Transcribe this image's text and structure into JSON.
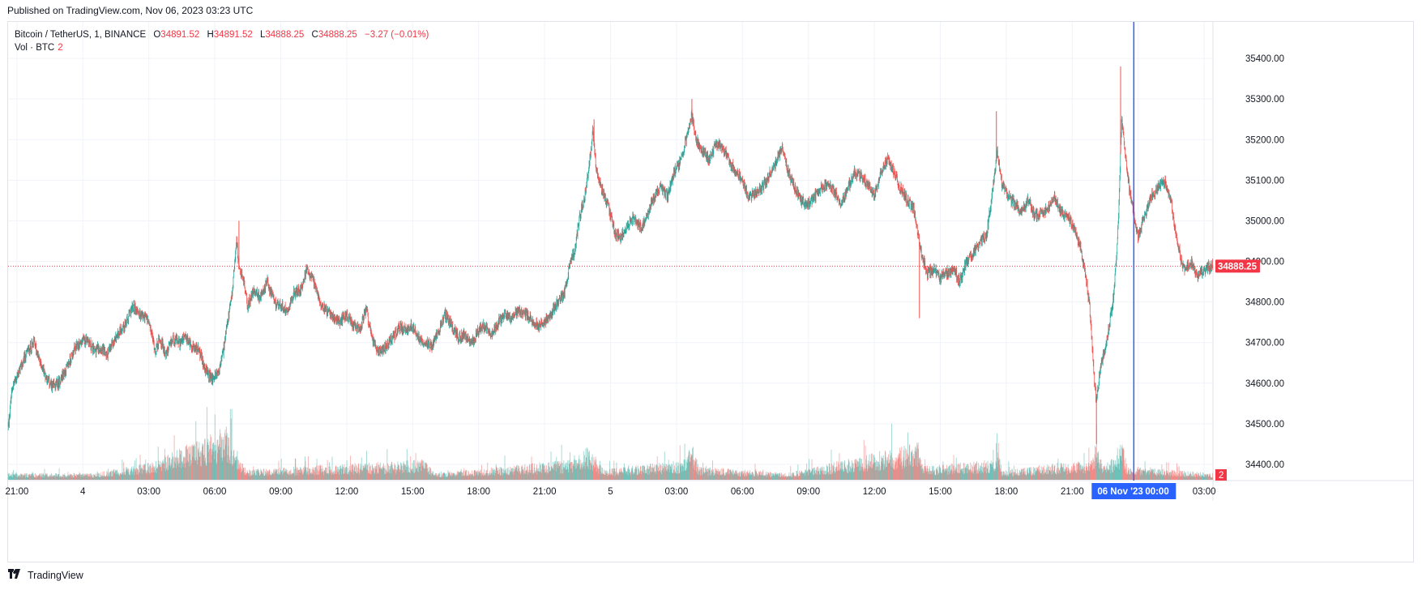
{
  "header": {
    "published": "Published on TradingView.com, Nov 06, 2023 03:23 UTC"
  },
  "legend": {
    "symbol": "Bitcoin / TetherUS, 1, BINANCE",
    "open_label": "O",
    "open": "34891.52",
    "high_label": "H",
    "high": "34891.52",
    "low_label": "L",
    "low": "34888.25",
    "close_label": "C",
    "close": "34888.25",
    "change": "−3.27 (−0.01%)",
    "volume_label": "Vol · BTC",
    "volume_value": "2"
  },
  "footer": {
    "brand_icon": "tradingview-logo-icon",
    "brand": "TradingView"
  },
  "colors": {
    "up": "#26a69a",
    "down": "#ef5350",
    "crosshair": "#2962ff",
    "price_line": "#f23645",
    "grid": "#f0f3fa"
  },
  "chart_data": {
    "type": "candlestick",
    "symbol": "Bitcoin / TetherUS",
    "interval": "1",
    "exchange": "BINANCE",
    "ylim": [
      34360,
      35490
    ],
    "y_ticks": [
      34400,
      34500,
      34600,
      34700,
      34800,
      34900,
      35000,
      35100,
      35200,
      35300,
      35400
    ],
    "y_tick_labels": [
      "34400.00",
      "34500.00",
      "34600.00",
      "34700.00",
      "34800.00",
      "34900.00",
      "35000.00",
      "35100.00",
      "35200.00",
      "35300.00",
      "35400.00"
    ],
    "x_tick_labels": [
      "21:00",
      "4",
      "03:00",
      "06:00",
      "09:00",
      "12:00",
      "15:00",
      "18:00",
      "21:00",
      "5",
      "03:00",
      "06:00",
      "09:00",
      "12:00",
      "15:00",
      "18:00",
      "21:00",
      "00:00",
      "03:00"
    ],
    "x_ticks_hours": [
      0,
      3,
      6,
      9,
      12,
      15,
      18,
      21,
      24,
      27,
      30,
      33,
      36,
      39,
      42,
      45,
      48,
      51,
      54
    ],
    "x_range_hours": [
      -0.4,
      54.4
    ],
    "last_price": 34888.25,
    "last_price_label": "34888.25",
    "crosshair_hour": 50.8,
    "crosshair_date_label": "06 Nov '23",
    "crosshair_time_label": "00:00",
    "volume_axis_label": "2",
    "grid": true,
    "price_path": [
      [
        -0.4,
        34490
      ],
      [
        -0.2,
        34590
      ],
      [
        0.2,
        34640
      ],
      [
        0.5,
        34680
      ],
      [
        0.8,
        34700
      ],
      [
        1.0,
        34660
      ],
      [
        1.3,
        34620
      ],
      [
        1.6,
        34590
      ],
      [
        1.9,
        34600
      ],
      [
        2.3,
        34640
      ],
      [
        2.6,
        34680
      ],
      [
        2.9,
        34700
      ],
      [
        3.2,
        34710
      ],
      [
        3.5,
        34680
      ],
      [
        3.8,
        34690
      ],
      [
        4.1,
        34670
      ],
      [
        4.4,
        34700
      ],
      [
        4.7,
        34730
      ],
      [
        5.0,
        34750
      ],
      [
        5.3,
        34790
      ],
      [
        5.6,
        34770
      ],
      [
        5.9,
        34760
      ],
      [
        6.1,
        34730
      ],
      [
        6.3,
        34680
      ],
      [
        6.5,
        34710
      ],
      [
        6.8,
        34670
      ],
      [
        7.1,
        34710
      ],
      [
        7.4,
        34700
      ],
      [
        7.7,
        34710
      ],
      [
        8.0,
        34690
      ],
      [
        8.3,
        34680
      ],
      [
        8.6,
        34630
      ],
      [
        8.9,
        34610
      ],
      [
        9.2,
        34630
      ],
      [
        9.4,
        34680
      ],
      [
        9.6,
        34750
      ],
      [
        9.8,
        34820
      ],
      [
        10.0,
        34960
      ],
      [
        10.1,
        34880
      ],
      [
        10.3,
        34860
      ],
      [
        10.5,
        34790
      ],
      [
        10.8,
        34830
      ],
      [
        11.1,
        34810
      ],
      [
        11.4,
        34850
      ],
      [
        11.7,
        34800
      ],
      [
        12.0,
        34790
      ],
      [
        12.3,
        34780
      ],
      [
        12.6,
        34820
      ],
      [
        12.9,
        34830
      ],
      [
        13.2,
        34880
      ],
      [
        13.5,
        34850
      ],
      [
        13.8,
        34800
      ],
      [
        14.1,
        34780
      ],
      [
        14.4,
        34760
      ],
      [
        14.7,
        34750
      ],
      [
        15.0,
        34770
      ],
      [
        15.3,
        34740
      ],
      [
        15.6,
        34730
      ],
      [
        15.9,
        34780
      ],
      [
        16.2,
        34700
      ],
      [
        16.5,
        34680
      ],
      [
        16.8,
        34690
      ],
      [
        17.1,
        34710
      ],
      [
        17.4,
        34740
      ],
      [
        17.7,
        34730
      ],
      [
        18.0,
        34740
      ],
      [
        18.3,
        34710
      ],
      [
        18.6,
        34700
      ],
      [
        18.9,
        34690
      ],
      [
        19.2,
        34730
      ],
      [
        19.5,
        34770
      ],
      [
        19.8,
        34740
      ],
      [
        20.1,
        34710
      ],
      [
        20.4,
        34720
      ],
      [
        20.7,
        34700
      ],
      [
        21.0,
        34730
      ],
      [
        21.3,
        34740
      ],
      [
        21.6,
        34720
      ],
      [
        21.9,
        34750
      ],
      [
        22.2,
        34770
      ],
      [
        22.5,
        34760
      ],
      [
        22.8,
        34780
      ],
      [
        23.1,
        34770
      ],
      [
        23.4,
        34760
      ],
      [
        23.7,
        34740
      ],
      [
        24.0,
        34750
      ],
      [
        24.3,
        34770
      ],
      [
        24.6,
        34800
      ],
      [
        24.9,
        34820
      ],
      [
        25.2,
        34900
      ],
      [
        25.4,
        34930
      ],
      [
        25.6,
        35010
      ],
      [
        25.8,
        35050
      ],
      [
        26.0,
        35120
      ],
      [
        26.2,
        35220
      ],
      [
        26.35,
        35130
      ],
      [
        26.6,
        35080
      ],
      [
        26.9,
        35040
      ],
      [
        27.2,
        34970
      ],
      [
        27.5,
        34960
      ],
      [
        27.8,
        34990
      ],
      [
        28.1,
        35010
      ],
      [
        28.4,
        34980
      ],
      [
        28.7,
        35020
      ],
      [
        29.0,
        35060
      ],
      [
        29.3,
        35080
      ],
      [
        29.6,
        35060
      ],
      [
        29.9,
        35120
      ],
      [
        30.2,
        35150
      ],
      [
        30.5,
        35210
      ],
      [
        30.7,
        35260
      ],
      [
        30.9,
        35200
      ],
      [
        31.2,
        35170
      ],
      [
        31.5,
        35150
      ],
      [
        31.8,
        35190
      ],
      [
        32.1,
        35180
      ],
      [
        32.4,
        35150
      ],
      [
        32.7,
        35120
      ],
      [
        33.0,
        35100
      ],
      [
        33.3,
        35060
      ],
      [
        33.6,
        35070
      ],
      [
        33.9,
        35080
      ],
      [
        34.2,
        35110
      ],
      [
        34.5,
        35140
      ],
      [
        34.8,
        35180
      ],
      [
        35.1,
        35120
      ],
      [
        35.4,
        35080
      ],
      [
        35.7,
        35050
      ],
      [
        36.0,
        35040
      ],
      [
        36.3,
        35060
      ],
      [
        36.6,
        35080
      ],
      [
        36.9,
        35090
      ],
      [
        37.2,
        35070
      ],
      [
        37.5,
        35040
      ],
      [
        37.8,
        35080
      ],
      [
        38.1,
        35120
      ],
      [
        38.4,
        35110
      ],
      [
        38.7,
        35090
      ],
      [
        39.0,
        35060
      ],
      [
        39.3,
        35120
      ],
      [
        39.6,
        35150
      ],
      [
        39.9,
        35120
      ],
      [
        40.2,
        35080
      ],
      [
        40.5,
        35050
      ],
      [
        40.8,
        35030
      ],
      [
        41.1,
        34930
      ],
      [
        41.4,
        34870
      ],
      [
        41.7,
        34880
      ],
      [
        42.0,
        34860
      ],
      [
        42.3,
        34870
      ],
      [
        42.6,
        34880
      ],
      [
        42.9,
        34850
      ],
      [
        43.2,
        34900
      ],
      [
        43.5,
        34920
      ],
      [
        43.8,
        34950
      ],
      [
        44.1,
        34960
      ],
      [
        44.4,
        35080
      ],
      [
        44.6,
        35170
      ],
      [
        44.8,
        35090
      ],
      [
        45.1,
        35060
      ],
      [
        45.4,
        35040
      ],
      [
        45.7,
        35020
      ],
      [
        46.0,
        35050
      ],
      [
        46.3,
        35010
      ],
      [
        46.6,
        35020
      ],
      [
        46.9,
        35030
      ],
      [
        47.2,
        35060
      ],
      [
        47.5,
        35020
      ],
      [
        47.8,
        35010
      ],
      [
        48.1,
        34980
      ],
      [
        48.4,
        34930
      ],
      [
        48.6,
        34870
      ],
      [
        48.8,
        34790
      ],
      [
        49.0,
        34620
      ],
      [
        49.1,
        34560
      ],
      [
        49.3,
        34640
      ],
      [
        49.6,
        34710
      ],
      [
        49.9,
        34820
      ],
      [
        50.1,
        34990
      ],
      [
        50.25,
        35250
      ],
      [
        50.35,
        35200
      ],
      [
        50.6,
        35080
      ],
      [
        50.8,
        35020
      ],
      [
        51.0,
        34960
      ],
      [
        51.3,
        35010
      ],
      [
        51.6,
        35060
      ],
      [
        51.9,
        35080
      ],
      [
        52.2,
        35100
      ],
      [
        52.5,
        35050
      ],
      [
        52.8,
        34940
      ],
      [
        53.1,
        34880
      ],
      [
        53.4,
        34900
      ],
      [
        53.7,
        34860
      ],
      [
        54.0,
        34880
      ],
      [
        54.3,
        34888
      ]
    ],
    "spikes": [
      {
        "t": 10.1,
        "high": 35000
      },
      {
        "t": 26.25,
        "high": 35250
      },
      {
        "t": 30.7,
        "high": 35300
      },
      {
        "t": 44.55,
        "high": 35270
      },
      {
        "t": 50.2,
        "high": 35380
      },
      {
        "t": 49.1,
        "low": 34450
      },
      {
        "t": -0.35,
        "low": 34490
      },
      {
        "t": 41.05,
        "low": 34760
      }
    ],
    "volume_path": [
      [
        -0.4,
        0.1
      ],
      [
        3.5,
        0.1
      ],
      [
        6.0,
        0.25
      ],
      [
        9.6,
        0.8
      ],
      [
        10.0,
        0.35
      ],
      [
        10.5,
        0.15
      ],
      [
        13.0,
        0.2
      ],
      [
        18.5,
        0.3
      ],
      [
        19.0,
        0.1
      ],
      [
        25.2,
        0.3
      ],
      [
        26.0,
        0.5
      ],
      [
        26.3,
        0.35
      ],
      [
        26.7,
        0.15
      ],
      [
        30.4,
        0.3
      ],
      [
        30.7,
        0.55
      ],
      [
        31.0,
        0.2
      ],
      [
        35.0,
        0.1
      ],
      [
        41.0,
        0.55
      ],
      [
        41.2,
        0.2
      ],
      [
        44.5,
        0.3
      ],
      [
        44.6,
        0.45
      ],
      [
        44.8,
        0.15
      ],
      [
        48.9,
        0.3
      ],
      [
        49.1,
        0.6
      ],
      [
        49.4,
        0.2
      ],
      [
        50.1,
        0.4
      ],
      [
        50.25,
        0.6
      ],
      [
        50.5,
        0.2
      ],
      [
        54.3,
        0.1
      ]
    ]
  }
}
